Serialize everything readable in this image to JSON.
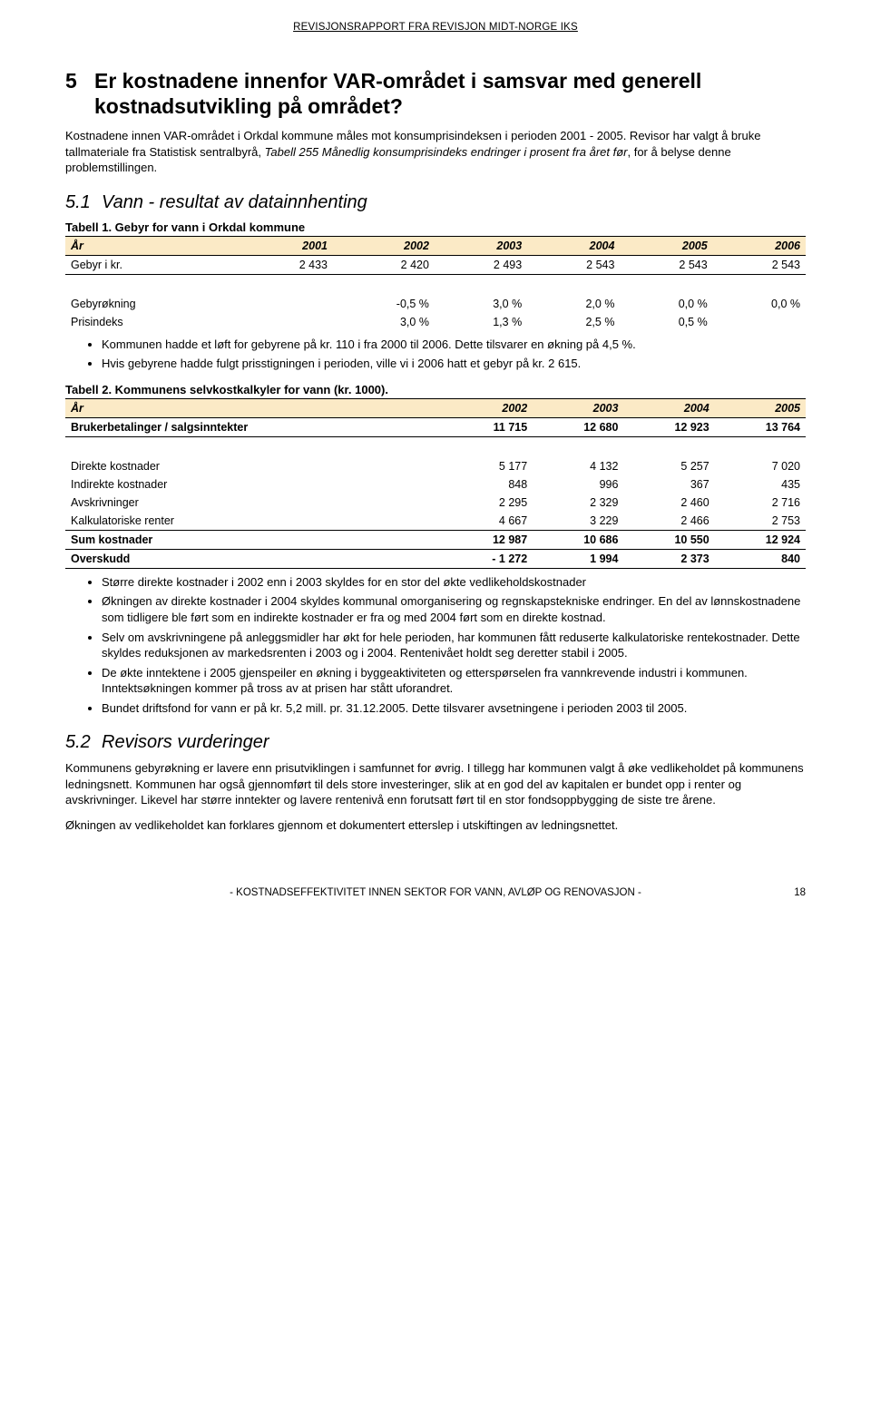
{
  "report_header": "REVISJONSRAPPORT FRA REVISJON MIDT-NORGE IKS",
  "section5": {
    "num": "5",
    "title": "Er kostnadene innenfor VAR-området i samsvar med generell kostnadsutvikling på området?",
    "intro_before_italic": "Kostnadene innen VAR-området i Orkdal kommune måles mot konsumprisindeksen i perioden 2001 - 2005. Revisor har valgt å bruke tallmateriale fra Statistisk sentralbyrå, ",
    "intro_italic": "Tabell 255 Månedlig konsumprisindeks endringer i prosent fra året før",
    "intro_after_italic": ", for å belyse denne problemstillingen."
  },
  "section5_1": {
    "num": "5.1",
    "title": "Vann - resultat av datainnhenting"
  },
  "table1": {
    "caption": "Tabell 1. Gebyr for vann i Orkdal kommune",
    "header_bg": "#fbeac6",
    "columns": [
      "År",
      "2001",
      "2002",
      "2003",
      "2004",
      "2005",
      "2006"
    ],
    "rows": [
      {
        "label": "Gebyr i kr.",
        "vals": [
          "2 433",
          "2 420",
          "2 493",
          "2 543",
          "2 543",
          "2 543"
        ],
        "last": true
      }
    ],
    "extra_rows": [
      {
        "label": "Gebyrøkning",
        "vals": [
          "",
          "-0,5 %",
          "3,0 %",
          "2,0 %",
          "0,0 %",
          "0,0 %"
        ]
      },
      {
        "label": "Prisindeks",
        "vals": [
          "",
          "3,0 %",
          "1,3 %",
          "2,5 %",
          "0,5 %",
          ""
        ]
      }
    ]
  },
  "bullets_after_t1": [
    "Kommunen hadde et løft for gebyrene på kr. 110 i fra 2000 til 2006. Dette tilsvarer en økning på 4,5 %.",
    "Hvis gebyrene hadde fulgt prisstigningen i perioden, ville vi i 2006 hatt et gebyr på kr. 2 615."
  ],
  "table2": {
    "caption": "Tabell 2. Kommunens selvkostkalkyler for vann (kr. 1000).",
    "header_bg": "#fbeac6",
    "columns": [
      "År",
      "2002",
      "2003",
      "2004",
      "2005"
    ],
    "rows": [
      {
        "label": "Brukerbetalinger / salgsinntekter",
        "vals": [
          "11 715",
          "12 680",
          "12 923",
          "13 764"
        ],
        "bold": true,
        "bottom_border": true
      },
      {
        "spacer": true
      },
      {
        "label": "Direkte kostnader",
        "vals": [
          "5 177",
          "4 132",
          "5 257",
          "7 020"
        ]
      },
      {
        "label": "Indirekte kostnader",
        "vals": [
          "848",
          "996",
          "367",
          "435"
        ]
      },
      {
        "label": "Avskrivninger",
        "vals": [
          "2 295",
          "2 329",
          "2 460",
          "2 716"
        ]
      },
      {
        "label": "Kalkulatoriske renter",
        "vals": [
          "4 667",
          "3 229",
          "2 466",
          "2 753"
        ]
      },
      {
        "label": "Sum kostnader",
        "vals": [
          "12 987",
          "10 686",
          "10 550",
          "12 924"
        ],
        "bold": true,
        "top_border": true
      },
      {
        "label": "Overskudd",
        "vals": [
          "- 1 272",
          "1 994",
          "2 373",
          "840"
        ],
        "bold": true,
        "top_border": true,
        "bottom_border": true
      }
    ]
  },
  "bullets_after_t2": [
    "Større direkte kostnader i 2002 enn i 2003 skyldes for en stor del økte vedlikeholdskostnader",
    "Økningen av direkte kostnader i 2004 skyldes kommunal omorganisering og regnskapstekniske endringer. En del av lønnskostnadene som tidligere ble ført som en indirekte kostnader er fra og med 2004 ført som en direkte kostnad.",
    "Selv om avskrivningene på anleggsmidler har økt for hele perioden, har kommunen fått reduserte kalkulatoriske rentekostnader. Dette skyldes reduksjonen av markedsrenten i 2003 og i 2004. Rentenivået holdt seg deretter stabil i 2005.",
    "De økte inntektene i 2005 gjenspeiler en økning i byggeaktiviteten og etterspørselen fra vannkrevende industri i kommunen. Inntektsøkningen kommer på tross av at prisen har stått uforandret.",
    "Bundet driftsfond for vann er på kr. 5,2 mill. pr. 31.12.2005. Dette tilsvarer avsetningene i perioden 2003 til 2005."
  ],
  "section5_2": {
    "num": "5.2",
    "title": "Revisors vurderinger",
    "para1": "Kommunens gebyrøkning er lavere enn prisutviklingen i samfunnet for øvrig. I tillegg har kommunen valgt å øke vedlikeholdet på kommunens ledningsnett. Kommunen har også gjennomført til dels store investeringer, slik at en god del av kapitalen er bundet opp i renter og avskrivninger. Likevel har større inntekter og lavere rentenivå enn forutsatt ført til en stor fondsoppbygging de siste tre årene.",
    "para2": "Økningen av vedlikeholdet kan forklares gjennom et dokumentert etterslep i utskiftingen av ledningsnettet."
  },
  "footer": {
    "center": "- KOSTNADSEFFEKTIVITET INNEN SEKTOR FOR VANN, AVLØP OG RENOVASJON -",
    "page": "18"
  }
}
